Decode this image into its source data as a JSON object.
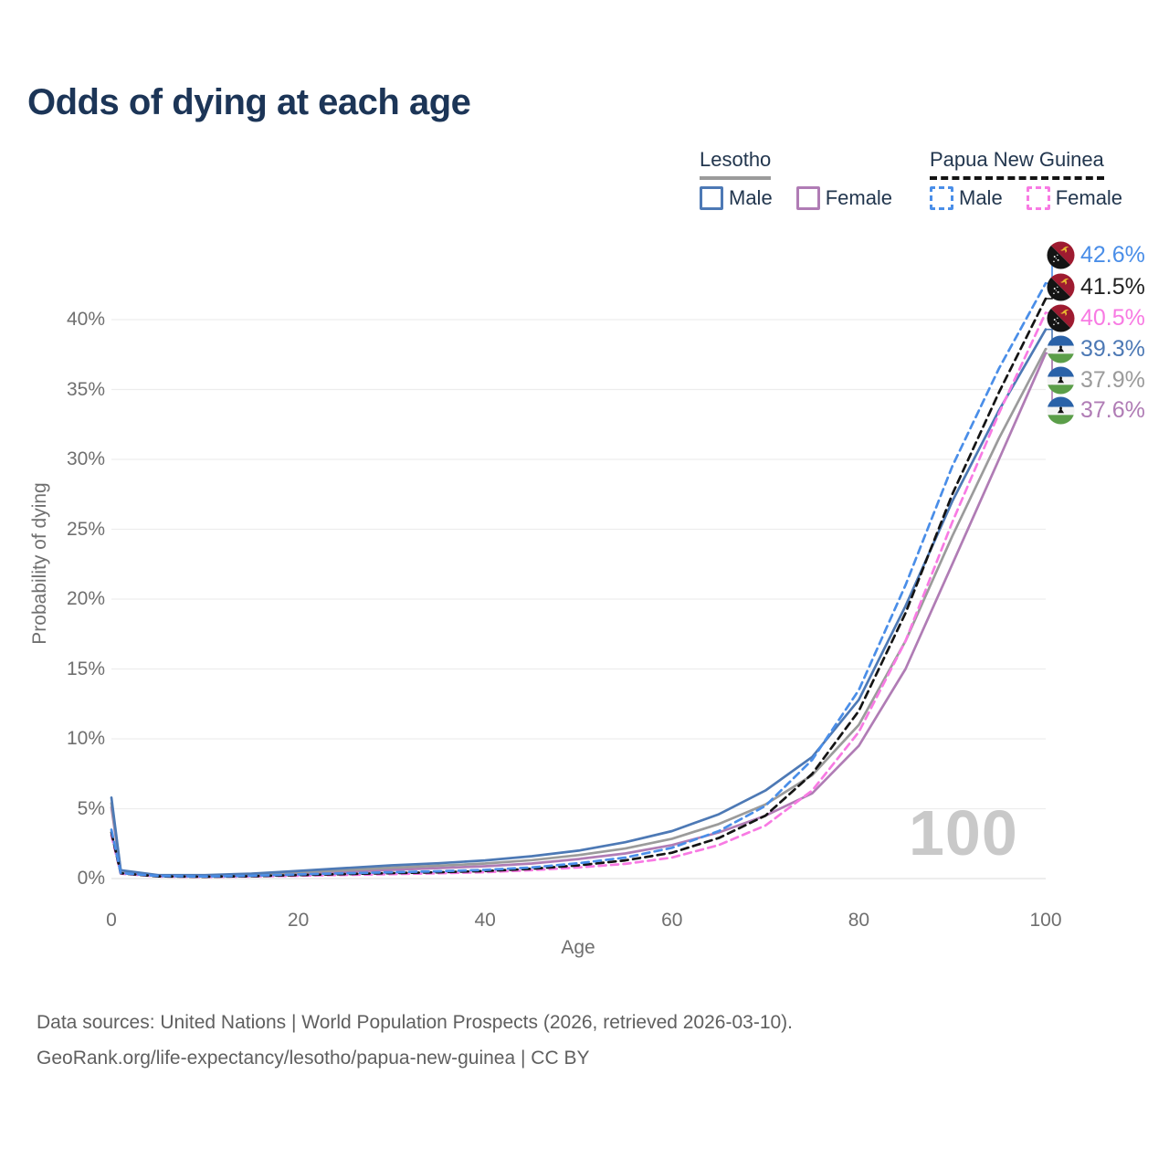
{
  "title": "Odds of dying at each age",
  "legend": {
    "groups": [
      {
        "name": "Lesotho",
        "line_style": "solid",
        "underline_color": "#9b9b9b",
        "items": [
          {
            "label": "Male",
            "color": "#4d79b5"
          },
          {
            "label": "Female",
            "color": "#b07cb5"
          }
        ]
      },
      {
        "name": "Papua New Guinea",
        "line_style": "dashed",
        "underline_color": "#141414",
        "items": [
          {
            "label": "Male",
            "color": "#4a8ee8"
          },
          {
            "label": "Female",
            "color": "#f87ae3"
          }
        ]
      }
    ]
  },
  "chart_data": {
    "type": "line",
    "title": "Odds of dying at each age",
    "xlabel": "Age",
    "ylabel": "Probability of dying",
    "xlim": [
      0,
      100
    ],
    "ylim": [
      0,
      45
    ],
    "grid": "horizontal",
    "x": [
      0,
      1,
      5,
      10,
      15,
      20,
      25,
      30,
      35,
      40,
      45,
      50,
      55,
      60,
      65,
      70,
      75,
      80,
      85,
      90,
      95,
      100
    ],
    "xticks": [
      {
        "value": 0,
        "label": "0"
      },
      {
        "value": 20,
        "label": "20"
      },
      {
        "value": 40,
        "label": "40"
      },
      {
        "value": 60,
        "label": "60"
      },
      {
        "value": 80,
        "label": "80"
      },
      {
        "value": 100,
        "label": "100"
      }
    ],
    "yticks": [
      {
        "value": 0,
        "label": "0%"
      },
      {
        "value": 5,
        "label": "5%"
      },
      {
        "value": 10,
        "label": "10%"
      },
      {
        "value": 15,
        "label": "15%"
      },
      {
        "value": 20,
        "label": "20%"
      },
      {
        "value": 25,
        "label": "25%"
      },
      {
        "value": 30,
        "label": "30%"
      },
      {
        "value": 35,
        "label": "35%"
      },
      {
        "value": 40,
        "label": "40%"
      }
    ],
    "unit": "%",
    "series": [
      {
        "name": "Lesotho Female",
        "country": "Lesotho",
        "sex": "Female",
        "color": "#b07cb5",
        "dashed": false,
        "values": [
          5.1,
          0.5,
          0.2,
          0.18,
          0.25,
          0.35,
          0.48,
          0.62,
          0.75,
          0.88,
          1.08,
          1.4,
          1.8,
          2.4,
          3.3,
          4.5,
          6.1,
          9.5,
          15.0,
          22.5,
          30.0,
          37.6
        ]
      },
      {
        "name": "Lesotho Both sexes",
        "country": "Lesotho",
        "sex": "Both",
        "color": "#9b9b9b",
        "dashed": false,
        "values": [
          5.4,
          0.55,
          0.22,
          0.2,
          0.3,
          0.45,
          0.6,
          0.78,
          0.92,
          1.08,
          1.32,
          1.68,
          2.15,
          2.85,
          3.9,
          5.3,
          7.4,
          11.0,
          17.0,
          24.5,
          31.5,
          37.9
        ]
      },
      {
        "name": "Lesotho Male",
        "country": "Lesotho",
        "sex": "Male",
        "color": "#4d79b5",
        "dashed": false,
        "values": [
          5.8,
          0.6,
          0.25,
          0.25,
          0.35,
          0.55,
          0.75,
          0.95,
          1.1,
          1.3,
          1.6,
          2.0,
          2.6,
          3.4,
          4.6,
          6.3,
          8.7,
          12.8,
          19.5,
          27.0,
          33.5,
          39.3
        ]
      },
      {
        "name": "Papua New Guinea Female",
        "country": "Papua New Guinea",
        "sex": "Female",
        "color": "#f87ae3",
        "dashed": true,
        "values": [
          3.1,
          0.35,
          0.15,
          0.12,
          0.15,
          0.2,
          0.26,
          0.32,
          0.38,
          0.46,
          0.6,
          0.8,
          1.05,
          1.5,
          2.4,
          3.8,
          6.3,
          10.5,
          17.0,
          25.5,
          33.3,
          40.5
        ]
      },
      {
        "name": "Papua New Guinea Both sexes",
        "country": "Papua New Guinea",
        "sex": "Both",
        "color": "#141414",
        "dashed": true,
        "values": [
          3.3,
          0.38,
          0.16,
          0.13,
          0.17,
          0.25,
          0.32,
          0.39,
          0.45,
          0.54,
          0.7,
          0.95,
          1.3,
          1.85,
          2.9,
          4.5,
          7.5,
          12.0,
          19.0,
          27.5,
          34.8,
          41.5
        ]
      },
      {
        "name": "Papua New Guinea Male",
        "country": "Papua New Guinea",
        "sex": "Male",
        "color": "#4a8ee8",
        "dashed": true,
        "values": [
          3.5,
          0.4,
          0.18,
          0.15,
          0.2,
          0.3,
          0.38,
          0.45,
          0.52,
          0.62,
          0.8,
          1.1,
          1.5,
          2.2,
          3.4,
          5.2,
          8.5,
          13.5,
          21.0,
          29.5,
          36.5,
          42.6
        ]
      }
    ],
    "end_labels": [
      {
        "value": "42.6%",
        "color": "#4a8ee8",
        "flag": "png",
        "series_index": 5
      },
      {
        "value": "41.5%",
        "color": "#222222",
        "flag": "png",
        "series_index": 4
      },
      {
        "value": "40.5%",
        "color": "#f87ae3",
        "flag": "png",
        "series_index": 3
      },
      {
        "value": "39.3%",
        "color": "#4d79b5",
        "flag": "lesotho",
        "series_index": 2
      },
      {
        "value": "37.9%",
        "color": "#9b9b9b",
        "flag": "lesotho",
        "series_index": 1
      },
      {
        "value": "37.6%",
        "color": "#b07cb5",
        "flag": "lesotho",
        "series_index": 0
      }
    ]
  },
  "watermark": "100",
  "footer": {
    "line1": "Data sources: United Nations | World Population Prospects (2026, retrieved 2026-03-10).",
    "line2": "GeoRank.org/life-expectancy/lesotho/papua-new-guinea | CC BY"
  }
}
